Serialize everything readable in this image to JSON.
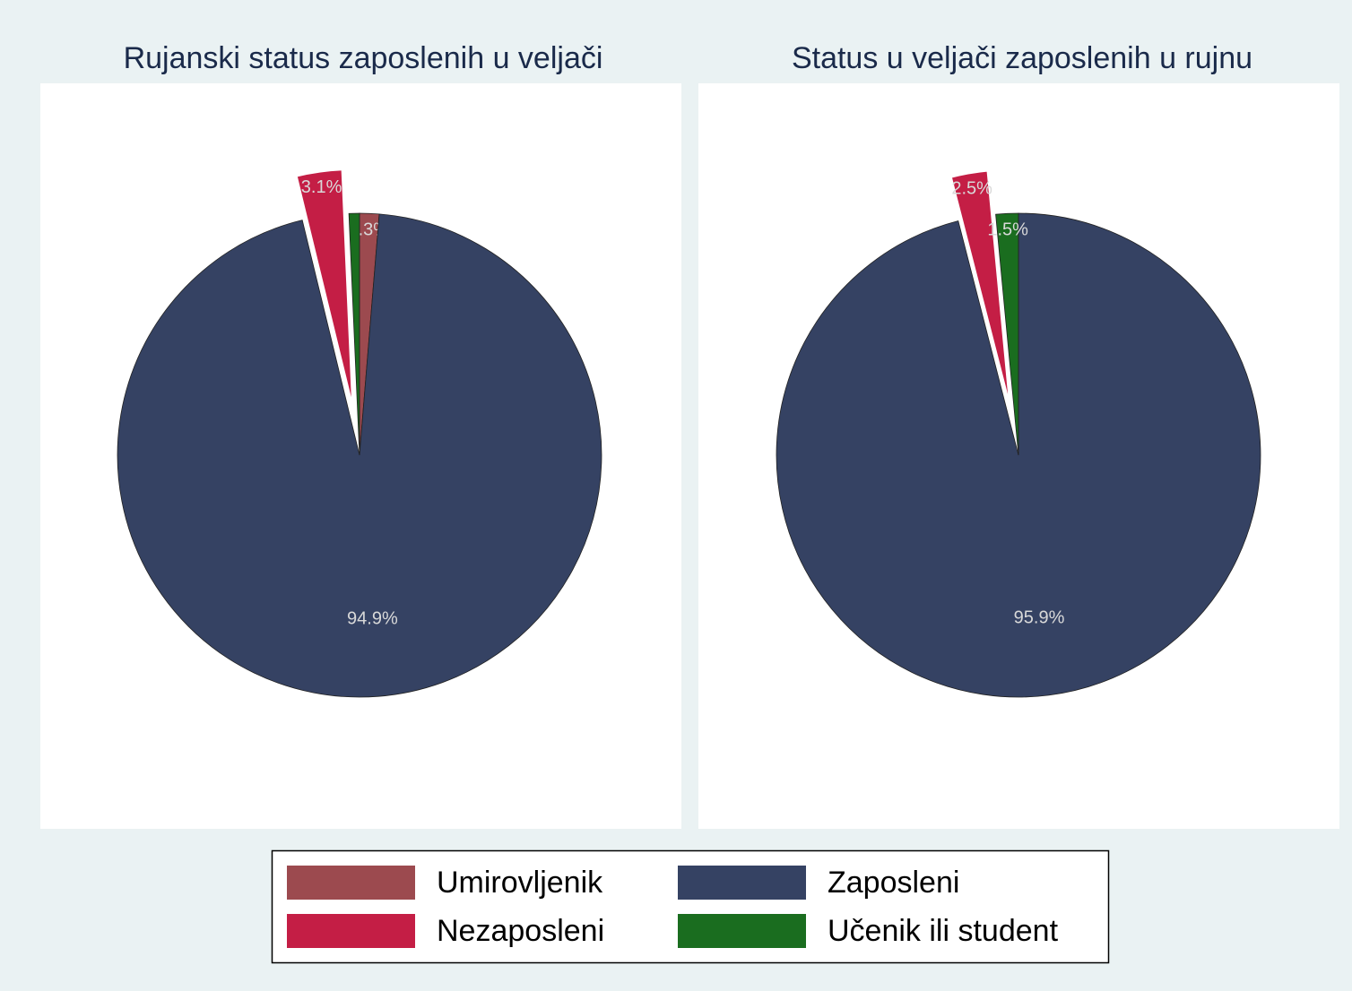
{
  "chart_data": [
    {
      "type": "pie",
      "title": "Rujanski status zaposlenih u veljači",
      "categories": [
        "Umirovljenik",
        "Zaposleni",
        "Nezaposleni",
        "Učenik ili student"
      ],
      "values": [
        1.3,
        94.9,
        3.1,
        0.7
      ],
      "value_labels": [
        "1.3%",
        "94.9%",
        "3.1%",
        null
      ],
      "colors": [
        "#9c4a4f",
        "#354263",
        "#c41e45",
        "#1a6d1f"
      ],
      "explode": [
        false,
        false,
        true,
        false
      ]
    },
    {
      "type": "pie",
      "title": "Status u veljači zaposlenih u rujnu",
      "categories": [
        "Umirovljenik",
        "Zaposleni",
        "Nezaposleni",
        "Učenik ili student"
      ],
      "values": [
        0,
        95.9,
        2.5,
        1.5
      ],
      "value_labels": [
        null,
        "95.9%",
        "2.5%",
        "1.5%"
      ],
      "colors": [
        "#9c4a4f",
        "#354263",
        "#c41e45",
        "#1a6d1f"
      ],
      "explode": [
        false,
        false,
        true,
        false
      ]
    }
  ],
  "legend": {
    "columns": 2
  }
}
